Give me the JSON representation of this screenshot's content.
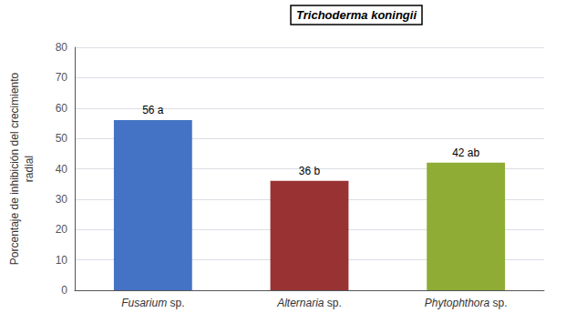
{
  "chart_data": {
    "type": "bar",
    "title": "Trichoderma koningii",
    "categories": [
      "Fusarium sp.",
      "Alternaria sp.",
      "Phytophthora sp."
    ],
    "values": [
      56,
      36,
      42
    ],
    "value_labels": [
      "56 a",
      "36 b",
      "42 ab"
    ],
    "data_labels": true,
    "colors": [
      "#4472c4",
      "#993333",
      "#8fac34"
    ],
    "ylabel": "Porcentaje de inhibición del crecimiento\nradial",
    "ylim": [
      0,
      80
    ],
    "yticks": [
      0,
      10,
      20,
      30,
      40,
      50,
      60,
      70,
      80
    ],
    "grid": true
  }
}
